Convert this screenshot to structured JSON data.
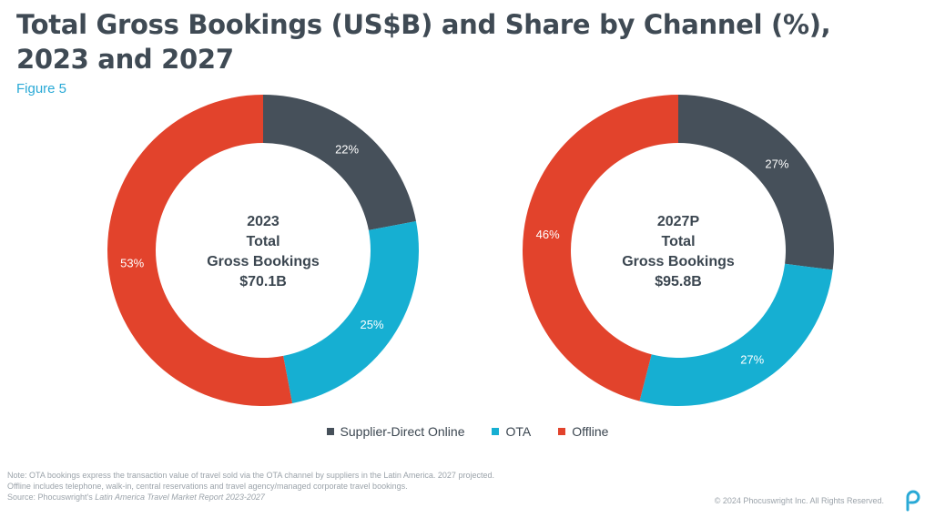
{
  "title_line1": "Total Gross Bookings (US$B) and Share by Channel (%),",
  "title_line2": "2023 and 2027",
  "subtitle": "Figure 5",
  "colors": {
    "supplier": "#46505a",
    "ota": "#16afd2",
    "offline": "#e2432c",
    "subtitle": "#29a9d6",
    "logo": "#29a9d6"
  },
  "chart_data": [
    {
      "type": "pie",
      "center_label": [
        "2023",
        "Total",
        "Gross Bookings",
        "$70.1B"
      ],
      "categories": [
        "Supplier-Direct Online",
        "OTA",
        "Offline"
      ],
      "values": [
        22,
        25,
        53
      ],
      "labels": [
        "22%",
        "25%",
        "53%"
      ]
    },
    {
      "type": "pie",
      "center_label": [
        "2027P",
        "Total",
        "Gross Bookings",
        "$95.8B"
      ],
      "categories": [
        "Supplier-Direct Online",
        "OTA",
        "Offline"
      ],
      "values": [
        27,
        27,
        46
      ],
      "labels": [
        "27%",
        "27%",
        "46%"
      ]
    }
  ],
  "legend": [
    "Supplier-Direct Online",
    "OTA",
    "Offline"
  ],
  "notes": {
    "line1": "Note: OTA bookings express the transaction value of travel sold via the OTA channel by suppliers in the Latin America. 2027 projected.",
    "line2": "Offline includes telephone, walk-in, central reservations and travel agency/managed corporate travel bookings.",
    "source_prefix": "Source: Phocuswright's ",
    "source_title": "Latin America Travel Market Report 2023-2027"
  },
  "copyright": "© 2024 Phocuswright Inc. All Rights Reserved."
}
